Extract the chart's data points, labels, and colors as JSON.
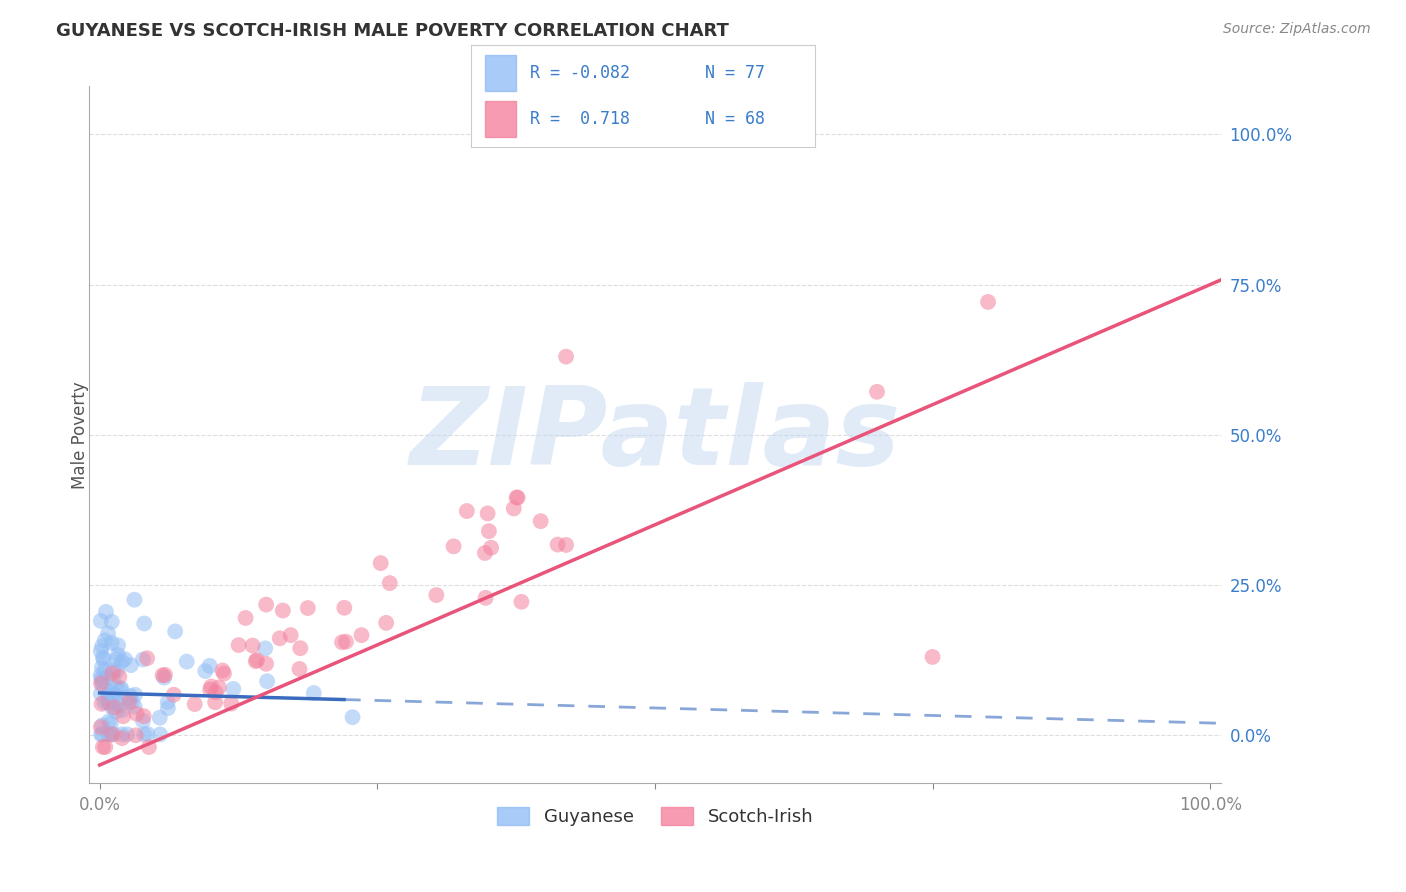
{
  "title": "GUYANESE VS SCOTCH-IRISH MALE POVERTY CORRELATION CHART",
  "source": "Source: ZipAtlas.com",
  "ylabel": "Male Poverty",
  "xlim": [
    -0.01,
    1.01
  ],
  "ylim": [
    -0.08,
    1.08
  ],
  "ytick_labels": [
    "100.0%",
    "75.0%",
    "50.0%",
    "25.0%",
    "0.0%"
  ],
  "ytick_values": [
    1.0,
    0.75,
    0.5,
    0.25,
    0.0
  ],
  "guyanese_color": "#92bef5",
  "scotch_irish_color": "#f4829e",
  "guyanese_R": -0.082,
  "guyanese_N": 77,
  "scotch_irish_R": 0.718,
  "scotch_irish_N": 68,
  "guyanese_line_color": "#3a6bbf",
  "scotch_irish_line_color": "#e8547a",
  "background_color": "#ffffff",
  "grid_color": "#dddddd",
  "watermark_color": "#c5d8f0"
}
